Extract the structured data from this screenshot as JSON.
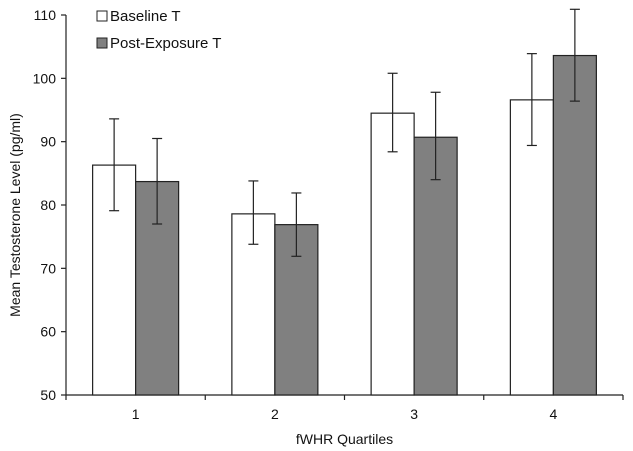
{
  "chart_data": {
    "type": "bar",
    "title": "",
    "xlabel": "fWHR Quartiles",
    "ylabel": "Mean Testosterone Level (pg/ml)",
    "ylim": [
      50,
      110
    ],
    "yticks": [
      50,
      60,
      70,
      80,
      90,
      100,
      110
    ],
    "categories": [
      "1",
      "2",
      "3",
      "4"
    ],
    "grid": false,
    "legend_position": "top-left",
    "series": [
      {
        "name": "Baseline T",
        "color": "#ffffff",
        "values": [
          86.3,
          78.6,
          94.5,
          96.6
        ],
        "error_low": [
          79.1,
          73.8,
          88.4,
          89.4
        ],
        "error_high": [
          93.6,
          83.8,
          100.8,
          103.9
        ]
      },
      {
        "name": "Post-Exposure T",
        "color": "#808080",
        "values": [
          83.7,
          76.9,
          90.7,
          103.6
        ],
        "error_low": [
          77.0,
          71.9,
          84.0,
          96.4
        ],
        "error_high": [
          90.5,
          81.9,
          97.8,
          110.9
        ]
      }
    ]
  }
}
